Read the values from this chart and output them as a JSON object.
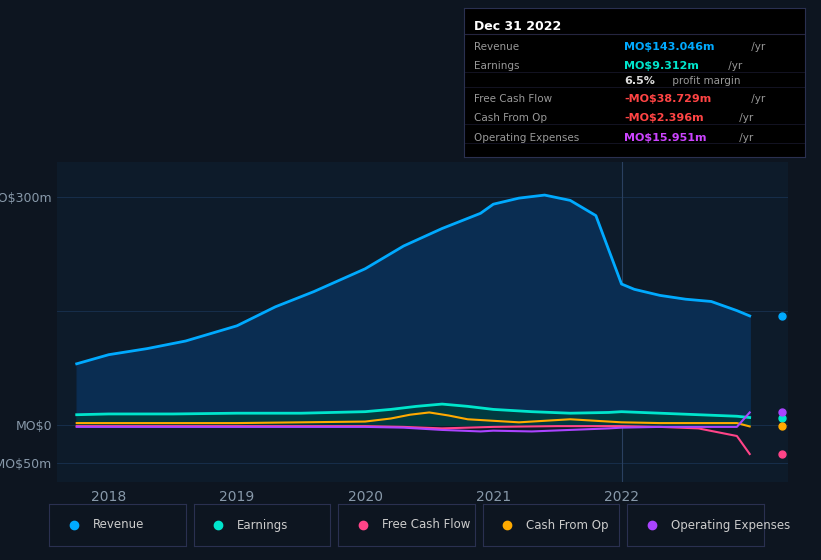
{
  "background_color": "#0d1520",
  "plot_bg_color": "#0d1b2a",
  "grid_color": "#1e3a5f",
  "text_color": "#8899aa",
  "xlim": [
    2017.6,
    2023.3
  ],
  "ylim": [
    -75,
    345
  ],
  "xticks": [
    2018,
    2019,
    2020,
    2021,
    2022
  ],
  "divider_x": 2022.0,
  "revenue": {
    "x": [
      2017.75,
      2018.0,
      2018.3,
      2018.6,
      2019.0,
      2019.3,
      2019.6,
      2020.0,
      2020.3,
      2020.6,
      2020.9,
      2021.0,
      2021.2,
      2021.4,
      2021.6,
      2021.8,
      2022.0,
      2022.1,
      2022.3,
      2022.5,
      2022.7,
      2022.9,
      2023.0
    ],
    "y": [
      80,
      92,
      100,
      110,
      130,
      155,
      175,
      205,
      235,
      258,
      278,
      290,
      298,
      302,
      295,
      275,
      185,
      178,
      170,
      165,
      162,
      150,
      143
    ],
    "color": "#00aaff",
    "fill_color": "#0a2d52",
    "label": "Revenue",
    "linewidth": 2.0
  },
  "earnings": {
    "x": [
      2017.75,
      2018.0,
      2018.5,
      2019.0,
      2019.5,
      2020.0,
      2020.2,
      2020.4,
      2020.6,
      2020.8,
      2021.0,
      2021.3,
      2021.6,
      2021.9,
      2022.0,
      2022.3,
      2022.6,
      2022.9,
      2023.0
    ],
    "y": [
      13,
      14,
      14,
      15,
      15,
      17,
      20,
      24,
      27,
      24,
      20,
      17,
      15,
      16,
      17,
      15,
      13,
      11,
      9.3
    ],
    "color": "#00e5cc",
    "fill_color": "#003d3d",
    "label": "Earnings",
    "linewidth": 2.0
  },
  "free_cash_flow": {
    "x": [
      2017.75,
      2018.0,
      2018.5,
      2019.0,
      2019.5,
      2020.0,
      2020.3,
      2020.6,
      2021.0,
      2021.5,
      2022.0,
      2022.3,
      2022.6,
      2022.9,
      2023.0
    ],
    "y": [
      -2,
      -2,
      -2,
      -2,
      -2,
      -2,
      -3,
      -5,
      -3,
      -2,
      -2,
      -3,
      -5,
      -15,
      -38.7
    ],
    "color": "#ff4488",
    "label": "Free Cash Flow",
    "linewidth": 1.5
  },
  "cash_from_op": {
    "x": [
      2017.75,
      2018.0,
      2018.5,
      2019.0,
      2019.5,
      2020.0,
      2020.2,
      2020.35,
      2020.5,
      2020.65,
      2020.8,
      2021.0,
      2021.2,
      2021.4,
      2021.6,
      2021.8,
      2022.0,
      2022.3,
      2022.6,
      2022.9,
      2023.0
    ],
    "y": [
      2,
      2,
      2,
      2,
      3,
      4,
      8,
      13,
      16,
      12,
      7,
      5,
      3,
      5,
      7,
      5,
      3,
      2,
      2,
      2,
      -2.4
    ],
    "color": "#ffaa00",
    "label": "Cash From Op",
    "linewidth": 1.5
  },
  "operating_expenses": {
    "x": [
      2017.75,
      2018.0,
      2018.5,
      2019.0,
      2019.5,
      2020.0,
      2020.3,
      2020.6,
      2020.9,
      2021.0,
      2021.3,
      2021.6,
      2021.9,
      2022.0,
      2022.3,
      2022.6,
      2022.9,
      2023.0
    ],
    "y": [
      -3,
      -3,
      -3,
      -3,
      -3,
      -3,
      -4,
      -7,
      -9,
      -8,
      -9,
      -7,
      -5,
      -4,
      -3,
      -3,
      -3,
      16
    ],
    "color": "#aa44ff",
    "label": "Operating Expenses",
    "linewidth": 1.5
  },
  "info_box": {
    "title": "Dec 31 2022",
    "rows": [
      {
        "label": "Revenue",
        "value": "MO$143.046m",
        "unit": " /yr",
        "value_color": "#00aaff"
      },
      {
        "label": "Earnings",
        "value": "MO$9.312m",
        "unit": " /yr",
        "value_color": "#00e5cc"
      },
      {
        "label": "",
        "value": "6.5%",
        "unit": " profit margin",
        "value_color": "#dddddd"
      },
      {
        "label": "Free Cash Flow",
        "value": "-MO$38.729m",
        "unit": " /yr",
        "value_color": "#ff4444"
      },
      {
        "label": "Cash From Op",
        "value": "-MO$2.396m",
        "unit": " /yr",
        "value_color": "#ff4444"
      },
      {
        "label": "Operating Expenses",
        "value": "MO$15.951m",
        "unit": " /yr",
        "value_color": "#cc44ff"
      }
    ]
  },
  "legend": [
    {
      "label": "Revenue",
      "color": "#00aaff"
    },
    {
      "label": "Earnings",
      "color": "#00e5cc"
    },
    {
      "label": "Free Cash Flow",
      "color": "#ff4488"
    },
    {
      "label": "Cash From Op",
      "color": "#ffaa00"
    },
    {
      "label": "Operating Expenses",
      "color": "#aa44ff"
    }
  ],
  "end_markers": [
    {
      "y": 143,
      "color": "#00aaff"
    },
    {
      "y": 9.3,
      "color": "#00e5cc"
    },
    {
      "y": -38.7,
      "color": "#ff4488"
    },
    {
      "y": -2.4,
      "color": "#ffaa00"
    },
    {
      "y": 16,
      "color": "#aa44ff"
    }
  ]
}
